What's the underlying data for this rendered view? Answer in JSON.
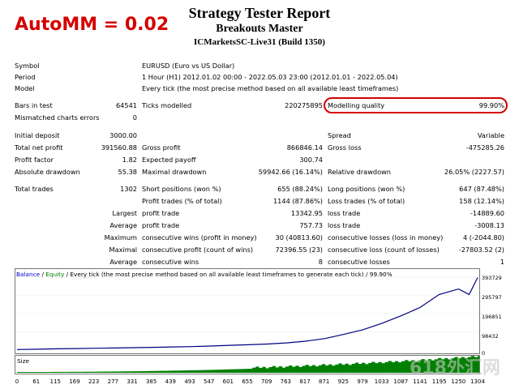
{
  "overlay": {
    "text": "AutoMM = 0.02"
  },
  "header": {
    "title": "Strategy Tester Report",
    "strategy": "Breakouts Master",
    "server": "ICMarketsSC-Live31 (Build 1350)"
  },
  "info": {
    "symbol_label": "Symbol",
    "symbol_value": "EURUSD (Euro vs US Dollar)",
    "period_label": "Period",
    "period_value": "1 Hour (H1) 2012.01.02 00:00 - 2022.05.03 23:00 (2012.01.01 - 2022.05.04)",
    "model_label": "Model",
    "model_value": "Every tick (the most precise method based on all available least timeframes)"
  },
  "stats": {
    "bars_label": "Bars in test",
    "bars_value": "64541",
    "ticks_label": "Ticks modelled",
    "ticks_value": "220275895",
    "mq_label": "Modelling quality",
    "mq_value": "99.90%",
    "mce_label": "Mismatched charts errors",
    "mce_value": "0",
    "deposit_label": "Initial deposit",
    "deposit_value": "3000.00",
    "spread_label": "Spread",
    "spread_value": "Variable",
    "tnp_label": "Total net profit",
    "tnp_value": "391560.88",
    "gp_label": "Gross profit",
    "gp_value": "866846.14",
    "gl_label": "Gross loss",
    "gl_value": "-475285.26",
    "pf_label": "Profit factor",
    "pf_value": "1.82",
    "ep_label": "Expected payoff",
    "ep_value": "300.74",
    "ad_label": "Absolute drawdown",
    "ad_value": "55.38",
    "md_label": "Maximal drawdown",
    "md_value": "59942.66 (16.14%)",
    "rd_label": "Relative drawdown",
    "rd_value": "26.05% (2227.57)",
    "tt_label": "Total trades",
    "tt_value": "1302",
    "sp_label": "Short positions (won %)",
    "sp_value": "655 (88.24%)",
    "lp_label": "Long positions (won %)",
    "lp_value": "647 (87.48%)",
    "pt_label": "Profit trades (% of total)",
    "pt_value": "1144 (87.86%)",
    "lt_label": "Loss trades (% of total)",
    "lt_value": "158 (12.14%)",
    "largest_label": "Largest",
    "lpt_label": "profit trade",
    "lpt_value": "13342.95",
    "llt_label": "loss trade",
    "llt_value": "-14889.60",
    "average_label": "Average",
    "apt_label": "profit trade",
    "apt_value": "757.73",
    "alt_label": "loss trade",
    "alt_value": "-3008.13",
    "maximum_label": "Maximum",
    "mcw_label": "consecutive wins (profit in money)",
    "mcw_value": "30 (40813.60)",
    "mcl_label": "consecutive losses (loss in money)",
    "mcl_value": "4 (-2044.80)",
    "maximal_label": "Maximal",
    "mcp_label": "consecutive profit (count of wins)",
    "mcp_value": "72396.55 (23)",
    "mclc_label": "consecutive loss (count of losses)",
    "mclc_value": "-27803.52 (2)",
    "average2_label": "Average",
    "acw_label": "consecutive wins",
    "acw_value": "8",
    "acl_label": "consecutive losses",
    "acl_value": "1"
  },
  "chart": {
    "legend_balance": "Balance",
    "legend_sep": "/",
    "legend_equity": "Equity",
    "legend_desc": "/ Every tick (the most precise method based on all available least timeframes to generate each tick) / 99.90%",
    "y_labels": [
      "393729",
      "295797",
      "196851",
      "98432",
      "0"
    ],
    "size_label": "Size",
    "x_labels": [
      "0",
      "61",
      "115",
      "169",
      "223",
      "277",
      "331",
      "385",
      "439",
      "493",
      "547",
      "601",
      "655",
      "709",
      "763",
      "817",
      "871",
      "925",
      "979",
      "1033",
      "1087",
      "1141",
      "1195",
      "1250",
      "1304"
    ],
    "balance_color": "#000080",
    "equity_color": "#008000",
    "watermark": "618外汇网"
  },
  "chart_data": {
    "type": "line",
    "title": "",
    "xlabel": "",
    "ylabel": "",
    "ylim": [
      0,
      393729
    ],
    "x": [
      0,
      61,
      115,
      169,
      223,
      277,
      331,
      385,
      439,
      493,
      547,
      601,
      655,
      709,
      763,
      817,
      871,
      925,
      979,
      1033,
      1087,
      1141,
      1195,
      1250,
      1280,
      1304
    ],
    "series": [
      {
        "name": "Balance",
        "values": [
          3000,
          5000,
          7000,
          8500,
          10000,
          11500,
          13000,
          15000,
          17000,
          19000,
          22000,
          26000,
          29000,
          33000,
          39000,
          48000,
          62000,
          85000,
          110000,
          145000,
          185000,
          230000,
          300000,
          330000,
          300000,
          391560
        ]
      }
    ]
  }
}
